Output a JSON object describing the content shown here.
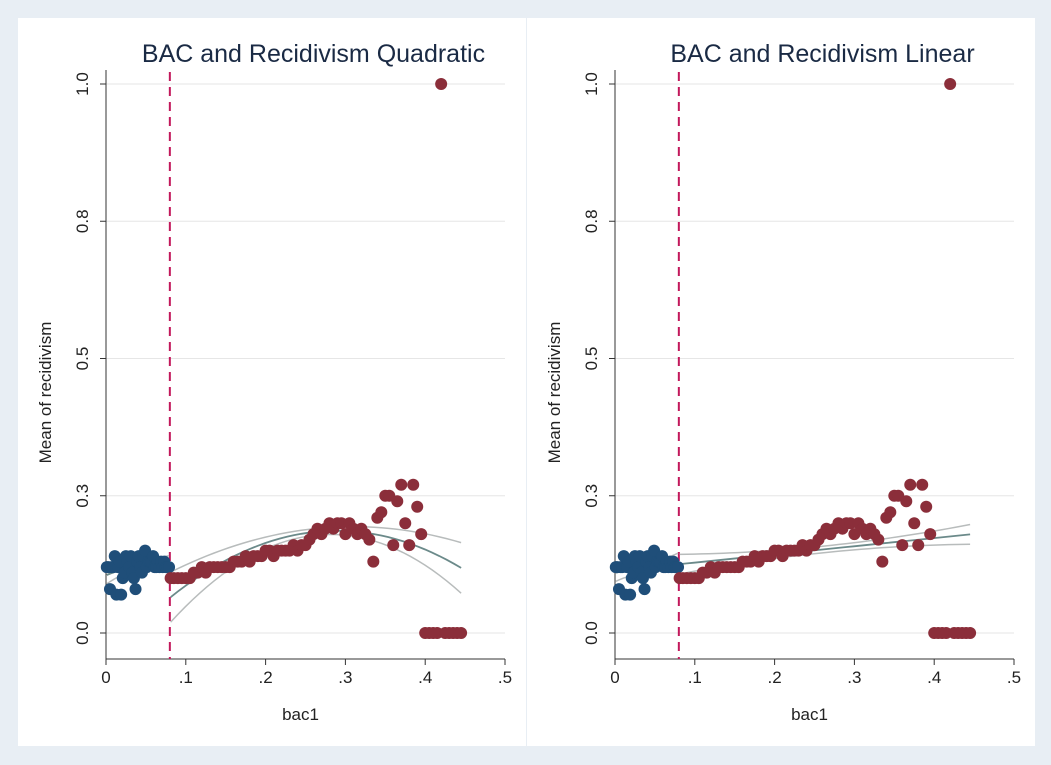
{
  "chart_data": [
    {
      "type": "scatter",
      "title": "BAC and Recidivism Quadratic",
      "xlabel": "bac1",
      "ylabel": "Mean of recidivism",
      "xlim": [
        0,
        0.5
      ],
      "ylim": [
        0,
        1.0
      ],
      "x_ticks": [
        "0",
        ".1",
        ".2",
        ".3",
        ".4",
        ".5"
      ],
      "y_ticks": [
        "0.0",
        "0.3",
        "0.5",
        "0.8",
        "1.0"
      ],
      "y_tick_values": [
        0.0,
        0.25,
        0.5,
        0.75,
        1.0
      ],
      "cutoff": 0.08,
      "grid": true,
      "fit": "quadratic",
      "colors": {
        "below": "#1f4e79",
        "above": "#8b2e3a",
        "cutoff": "#c2185b",
        "fit": "#6b8a8a",
        "ci": "#b8bcbc"
      },
      "series": [
        {
          "x": [
            0.001,
            0.003,
            0.005,
            0.007,
            0.009,
            0.011,
            0.013,
            0.015,
            0.017,
            0.019,
            0.021,
            0.023,
            0.025,
            0.027,
            0.029,
            0.031,
            0.033,
            0.035,
            0.037,
            0.039,
            0.041,
            0.043,
            0.045,
            0.047,
            0.049,
            0.051,
            0.053,
            0.055,
            0.057,
            0.059,
            0.061,
            0.063,
            0.065,
            0.067,
            0.069,
            0.071,
            0.073,
            0.075,
            0.077,
            0.079
          ],
          "y": [
            0.12,
            0.12,
            0.08,
            0.12,
            0.12,
            0.14,
            0.07,
            0.12,
            0.13,
            0.07,
            0.1,
            0.11,
            0.14,
            0.13,
            0.12,
            0.14,
            0.11,
            0.1,
            0.08,
            0.13,
            0.14,
            0.12,
            0.11,
            0.14,
            0.15,
            0.12,
            0.13,
            0.13,
            0.13,
            0.14,
            0.12,
            0.12,
            0.13,
            0.12,
            0.13,
            0.12,
            0.13,
            0.12,
            0.12,
            0.12
          ]
        },
        {
          "x": [
            0.081,
            0.085,
            0.09,
            0.095,
            0.1,
            0.105,
            0.11,
            0.115,
            0.12,
            0.125,
            0.13,
            0.135,
            0.14,
            0.145,
            0.15,
            0.155,
            0.16,
            0.165,
            0.17,
            0.175,
            0.18,
            0.185,
            0.19,
            0.195,
            0.2,
            0.205,
            0.21,
            0.215,
            0.22,
            0.225,
            0.23,
            0.235,
            0.24,
            0.245,
            0.25,
            0.255,
            0.26,
            0.265,
            0.27,
            0.275,
            0.28,
            0.285,
            0.29,
            0.295,
            0.3,
            0.305,
            0.31,
            0.315,
            0.32,
            0.325,
            0.33,
            0.335,
            0.34,
            0.345,
            0.35,
            0.355,
            0.36,
            0.365,
            0.37,
            0.375,
            0.38,
            0.385,
            0.39,
            0.395,
            0.4,
            0.405,
            0.41,
            0.415,
            0.42,
            0.425,
            0.43,
            0.435,
            0.44,
            0.445
          ],
          "y": [
            0.1,
            0.1,
            0.1,
            0.1,
            0.1,
            0.1,
            0.11,
            0.11,
            0.12,
            0.11,
            0.12,
            0.12,
            0.12,
            0.12,
            0.12,
            0.12,
            0.13,
            0.13,
            0.13,
            0.14,
            0.13,
            0.14,
            0.14,
            0.14,
            0.15,
            0.15,
            0.14,
            0.15,
            0.15,
            0.15,
            0.15,
            0.16,
            0.15,
            0.16,
            0.16,
            0.17,
            0.18,
            0.19,
            0.18,
            0.19,
            0.2,
            0.19,
            0.2,
            0.2,
            0.18,
            0.2,
            0.19,
            0.18,
            0.19,
            0.18,
            0.17,
            0.13,
            0.21,
            0.22,
            0.25,
            0.25,
            0.16,
            0.24,
            0.27,
            0.2,
            0.16,
            0.27,
            0.23,
            0.18,
            0.0,
            0.0,
            0.0,
            0.0,
            1.0,
            0.0,
            0.0,
            0.0,
            0.0,
            0.0
          ]
        }
      ]
    },
    {
      "type": "scatter",
      "title": "BAC and Recidivism Linear",
      "xlabel": "bac1",
      "ylabel": "Mean of recidivism",
      "xlim": [
        0,
        0.5
      ],
      "ylim": [
        0,
        1.0
      ],
      "x_ticks": [
        "0",
        ".1",
        ".2",
        ".3",
        ".4",
        ".5"
      ],
      "y_ticks": [
        "0.0",
        "0.3",
        "0.5",
        "0.8",
        "1.0"
      ],
      "y_tick_values": [
        0.0,
        0.25,
        0.5,
        0.75,
        1.0
      ],
      "cutoff": 0.08,
      "grid": true,
      "fit": "linear",
      "colors": {
        "below": "#1f4e79",
        "above": "#8b2e3a",
        "cutoff": "#c2185b",
        "fit": "#6b8a8a",
        "ci": "#b8bcbc"
      },
      "series": [
        {
          "x": [
            0.001,
            0.003,
            0.005,
            0.007,
            0.009,
            0.011,
            0.013,
            0.015,
            0.017,
            0.019,
            0.021,
            0.023,
            0.025,
            0.027,
            0.029,
            0.031,
            0.033,
            0.035,
            0.037,
            0.039,
            0.041,
            0.043,
            0.045,
            0.047,
            0.049,
            0.051,
            0.053,
            0.055,
            0.057,
            0.059,
            0.061,
            0.063,
            0.065,
            0.067,
            0.069,
            0.071,
            0.073,
            0.075,
            0.077,
            0.079
          ],
          "y": [
            0.12,
            0.12,
            0.08,
            0.12,
            0.12,
            0.14,
            0.07,
            0.12,
            0.13,
            0.07,
            0.1,
            0.11,
            0.14,
            0.13,
            0.12,
            0.14,
            0.11,
            0.1,
            0.08,
            0.13,
            0.14,
            0.12,
            0.11,
            0.14,
            0.15,
            0.12,
            0.13,
            0.13,
            0.13,
            0.14,
            0.12,
            0.12,
            0.13,
            0.12,
            0.13,
            0.12,
            0.13,
            0.12,
            0.12,
            0.12
          ]
        },
        {
          "x": [
            0.081,
            0.085,
            0.09,
            0.095,
            0.1,
            0.105,
            0.11,
            0.115,
            0.12,
            0.125,
            0.13,
            0.135,
            0.14,
            0.145,
            0.15,
            0.155,
            0.16,
            0.165,
            0.17,
            0.175,
            0.18,
            0.185,
            0.19,
            0.195,
            0.2,
            0.205,
            0.21,
            0.215,
            0.22,
            0.225,
            0.23,
            0.235,
            0.24,
            0.245,
            0.25,
            0.255,
            0.26,
            0.265,
            0.27,
            0.275,
            0.28,
            0.285,
            0.29,
            0.295,
            0.3,
            0.305,
            0.31,
            0.315,
            0.32,
            0.325,
            0.33,
            0.335,
            0.34,
            0.345,
            0.35,
            0.355,
            0.36,
            0.365,
            0.37,
            0.375,
            0.38,
            0.385,
            0.39,
            0.395,
            0.4,
            0.405,
            0.41,
            0.415,
            0.42,
            0.425,
            0.43,
            0.435,
            0.44,
            0.445
          ],
          "y": [
            0.1,
            0.1,
            0.1,
            0.1,
            0.1,
            0.1,
            0.11,
            0.11,
            0.12,
            0.11,
            0.12,
            0.12,
            0.12,
            0.12,
            0.12,
            0.12,
            0.13,
            0.13,
            0.13,
            0.14,
            0.13,
            0.14,
            0.14,
            0.14,
            0.15,
            0.15,
            0.14,
            0.15,
            0.15,
            0.15,
            0.15,
            0.16,
            0.15,
            0.16,
            0.16,
            0.17,
            0.18,
            0.19,
            0.18,
            0.19,
            0.2,
            0.19,
            0.2,
            0.2,
            0.18,
            0.2,
            0.19,
            0.18,
            0.19,
            0.18,
            0.17,
            0.13,
            0.21,
            0.22,
            0.25,
            0.25,
            0.16,
            0.24,
            0.27,
            0.2,
            0.16,
            0.27,
            0.23,
            0.18,
            0.0,
            0.0,
            0.0,
            0.0,
            1.0,
            0.0,
            0.0,
            0.0,
            0.0,
            0.0
          ]
        }
      ]
    }
  ]
}
